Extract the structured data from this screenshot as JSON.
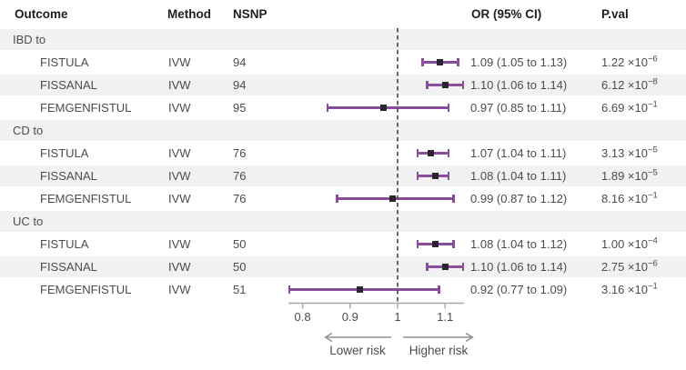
{
  "header": {
    "outcome": "Outcome",
    "method": "Method",
    "nsnp": "NSNP",
    "or_ci": "OR (95% CI)",
    "pval": "P.val"
  },
  "axis_labels": {
    "lower": "Lower risk",
    "higher": "Higher risk"
  },
  "colors": {
    "ci_bar": "#8a4d9b",
    "marker": "#2b252e",
    "band": "#f1f1f2",
    "reference_line": "#4c4c4c",
    "axis_line": "#a8a8a8",
    "arrow": "#8f8f8f",
    "header_text": "#1f1f1f",
    "body_text": "#4c4c4c"
  },
  "chart_data": {
    "type": "scatter",
    "subtype": "forest-plot",
    "title": "",
    "xlabel": "",
    "x_ticks": [
      "0.8",
      "0.9",
      "1",
      "1.1"
    ],
    "x_tick_values": [
      0.8,
      0.9,
      1.0,
      1.1
    ],
    "xlim": [
      0.77,
      1.14
    ],
    "reference_line": 1.0,
    "legend": "none",
    "grid": false,
    "rows": [
      {
        "group": "IBD to"
      },
      {
        "outcome": "FISTULA",
        "method": "IVW",
        "nsnp": "94",
        "or": 1.09,
        "ci_low": 1.05,
        "ci_high": 1.13,
        "or_ci_label": "1.09 (1.05 to 1.13)",
        "pval": {
          "base": "1.22 ×10",
          "exp": "−6"
        }
      },
      {
        "outcome": "FISSANAL",
        "method": "IVW",
        "nsnp": "94",
        "or": 1.1,
        "ci_low": 1.06,
        "ci_high": 1.14,
        "or_ci_label": "1.10 (1.06 to 1.14)",
        "pval": {
          "base": "6.12 ×10",
          "exp": "−8"
        }
      },
      {
        "outcome": "FEMGENFISTUL",
        "method": "IVW",
        "nsnp": "95",
        "or": 0.97,
        "ci_low": 0.85,
        "ci_high": 1.11,
        "or_ci_label": "0.97 (0.85 to 1.11)",
        "pval": {
          "base": "6.69 ×10",
          "exp": "−1"
        }
      },
      {
        "group": "CD to"
      },
      {
        "outcome": "FISTULA",
        "method": "IVW",
        "nsnp": "76",
        "or": 1.07,
        "ci_low": 1.04,
        "ci_high": 1.11,
        "or_ci_label": "1.07 (1.04 to 1.11)",
        "pval": {
          "base": "3.13 ×10",
          "exp": "−5"
        }
      },
      {
        "outcome": "FISSANAL",
        "method": "IVW",
        "nsnp": "76",
        "or": 1.08,
        "ci_low": 1.04,
        "ci_high": 1.11,
        "or_ci_label": "1.08 (1.04 to 1.11)",
        "pval": {
          "base": "1.89 ×10",
          "exp": "−5"
        }
      },
      {
        "outcome": "FEMGENFISTUL",
        "method": "IVW",
        "nsnp": "76",
        "or": 0.99,
        "ci_low": 0.87,
        "ci_high": 1.12,
        "or_ci_label": "0.99 (0.87 to 1.12)",
        "pval": {
          "base": "8.16 ×10",
          "exp": "−1"
        }
      },
      {
        "group": "UC to"
      },
      {
        "outcome": "FISTULA",
        "method": "IVW",
        "nsnp": "50",
        "or": 1.08,
        "ci_low": 1.04,
        "ci_high": 1.12,
        "or_ci_label": "1.08 (1.04 to 1.12)",
        "pval": {
          "base": "1.00 ×10",
          "exp": "−4"
        }
      },
      {
        "outcome": "FISSANAL",
        "method": "IVW",
        "nsnp": "50",
        "or": 1.1,
        "ci_low": 1.06,
        "ci_high": 1.14,
        "or_ci_label": "1.10 (1.06 to 1.14)",
        "pval": {
          "base": "2.75 ×10",
          "exp": "−6"
        }
      },
      {
        "outcome": "FEMGENFISTUL",
        "method": "IVW",
        "nsnp": "51",
        "or": 0.92,
        "ci_low": 0.77,
        "ci_high": 1.09,
        "or_ci_label": "0.92 (0.77 to 1.09)",
        "pval": {
          "base": "3.16 ×10",
          "exp": "−1"
        }
      }
    ]
  }
}
